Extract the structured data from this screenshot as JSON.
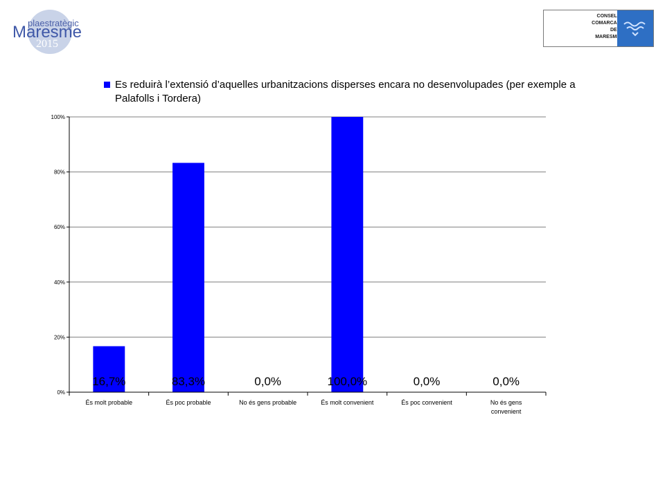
{
  "header": {
    "left_logo": {
      "top_text": "plaestratègic",
      "main_text": "Maresme",
      "year": "2015"
    },
    "right_logo": {
      "lines": [
        "CONSELL",
        "COMARCAL",
        "DEL",
        "MARESME"
      ],
      "emblem_color": "#2e6fc4"
    }
  },
  "chart_data": {
    "type": "bar",
    "categories": [
      "És molt probable",
      "És poc probable",
      "No és gens probable",
      "És molt convenient",
      "És poc convenient",
      "No és gens convenient"
    ],
    "series": [
      {
        "name": "Es reduirà l’extensió d’aquelles urbanitzacions disperses encara no desenvolupades (per exemple a Palafolls i Tordera)",
        "values": [
          16.7,
          83.3,
          0.0,
          100.0,
          0.0,
          0.0
        ],
        "color": "#0000ff"
      }
    ],
    "data_labels": [
      "16,7%",
      "83,3%",
      "0,0%",
      "100,0%",
      "0,0%",
      "0,0%"
    ],
    "y_ticks": [
      "0%",
      "20%",
      "40%",
      "60%",
      "80%",
      "100%"
    ],
    "ylim": [
      0,
      100
    ],
    "grid": true,
    "legend_position": "top"
  }
}
